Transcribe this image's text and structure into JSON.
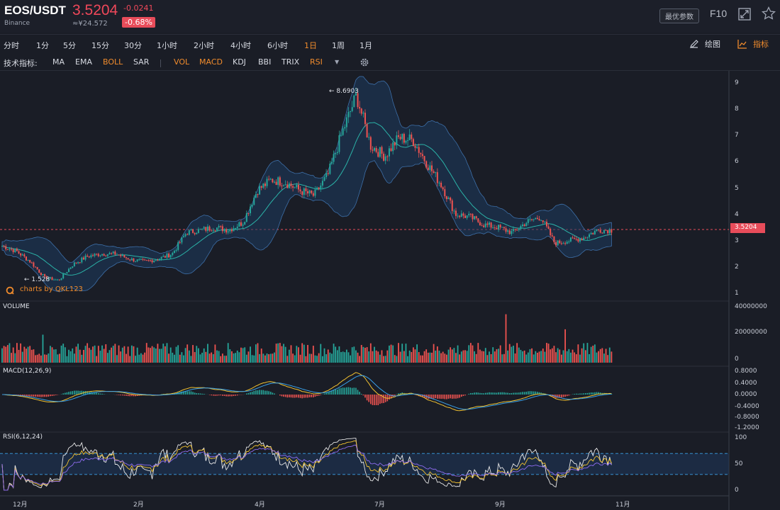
{
  "header": {
    "pair": "EOS/USDT",
    "exchange": "Binance",
    "price": "3.5204",
    "change": "-0.0241",
    "approx_cny": "≈¥24.572",
    "change_pct": "-0.68%",
    "best_params": "最优参数",
    "f10": "F10"
  },
  "periods": [
    "分时",
    "1分",
    "5分",
    "15分",
    "30分",
    "1小时",
    "2小时",
    "4小时",
    "6小时",
    "1日",
    "1周",
    "1月"
  ],
  "active_period": "1日",
  "toolbar": {
    "draw_label": "绘图",
    "indicator_label": "指标"
  },
  "indicator_bar": {
    "title": "技术指标:",
    "main": [
      "MA",
      "EMA",
      "BOLL",
      "SAR"
    ],
    "sub": [
      "VOL",
      "MACD",
      "KDJ",
      "BBI",
      "TRIX",
      "RSI"
    ],
    "active": [
      "BOLL",
      "VOL",
      "MACD",
      "RSI"
    ]
  },
  "watermark": "charts by QKL123",
  "colors": {
    "up": "#26a69a",
    "down": "#ef5350",
    "accent": "#f08b2c",
    "background": "#1a1d26",
    "boll_band": "#1e3a5f",
    "price_line": "#e84c5a"
  },
  "icons": [
    "expand-icon",
    "star-icon",
    "pencil-icon",
    "chart-line-icon",
    "gear-icon",
    "dropdown-caret-icon",
    "logo-icon"
  ],
  "chart_data": [
    {
      "type": "candlestick",
      "title": "",
      "current_price": 3.5204,
      "high_marker": 8.6903,
      "low_marker": 1.528,
      "y_ticks": [
        "9",
        "8",
        "7",
        "6",
        "5",
        "4",
        "3",
        "2",
        "1"
      ],
      "ylim": [
        1,
        9
      ],
      "x_ticks": [
        "12月",
        "2月",
        "4月",
        "7月",
        "9月",
        "11月"
      ],
      "overlay": "BOLL",
      "close_series": [
        2.9,
        2.7,
        2.3,
        1.7,
        1.6,
        2.2,
        2.5,
        2.6,
        2.6,
        2.4,
        2.3,
        2.4,
        2.6,
        3.4,
        3.5,
        3.6,
        3.5,
        3.8,
        5.0,
        5.4,
        5.3,
        5.0,
        4.8,
        5.6,
        7.2,
        8.6,
        6.7,
        6.3,
        7.0,
        6.9,
        6.0,
        5.2,
        4.1,
        4.0,
        3.7,
        3.6,
        3.4,
        3.8,
        4.0,
        3.0,
        3.1,
        3.2,
        3.5,
        3.5
      ]
    },
    {
      "type": "bar",
      "title": "VOLUME",
      "y_ticks": [
        "40000000",
        "20000000",
        "0"
      ],
      "ylim": [
        0,
        40000000
      ],
      "peak_values": [
        21000000,
        36000000,
        23000000
      ]
    },
    {
      "type": "line",
      "title": "MACD(12,26,9)",
      "y_ticks": [
        "0.8000",
        "0.4000",
        "0.0000",
        "-0.4000",
        "-0.8000",
        "-1.2000"
      ],
      "ylim": [
        -1.2,
        0.8
      ]
    },
    {
      "type": "line",
      "title": "RSI(6,12,24)",
      "y_ticks": [
        "100",
        "50",
        "0"
      ],
      "ylim": [
        0,
        100
      ],
      "bands": [
        30,
        70
      ]
    }
  ]
}
